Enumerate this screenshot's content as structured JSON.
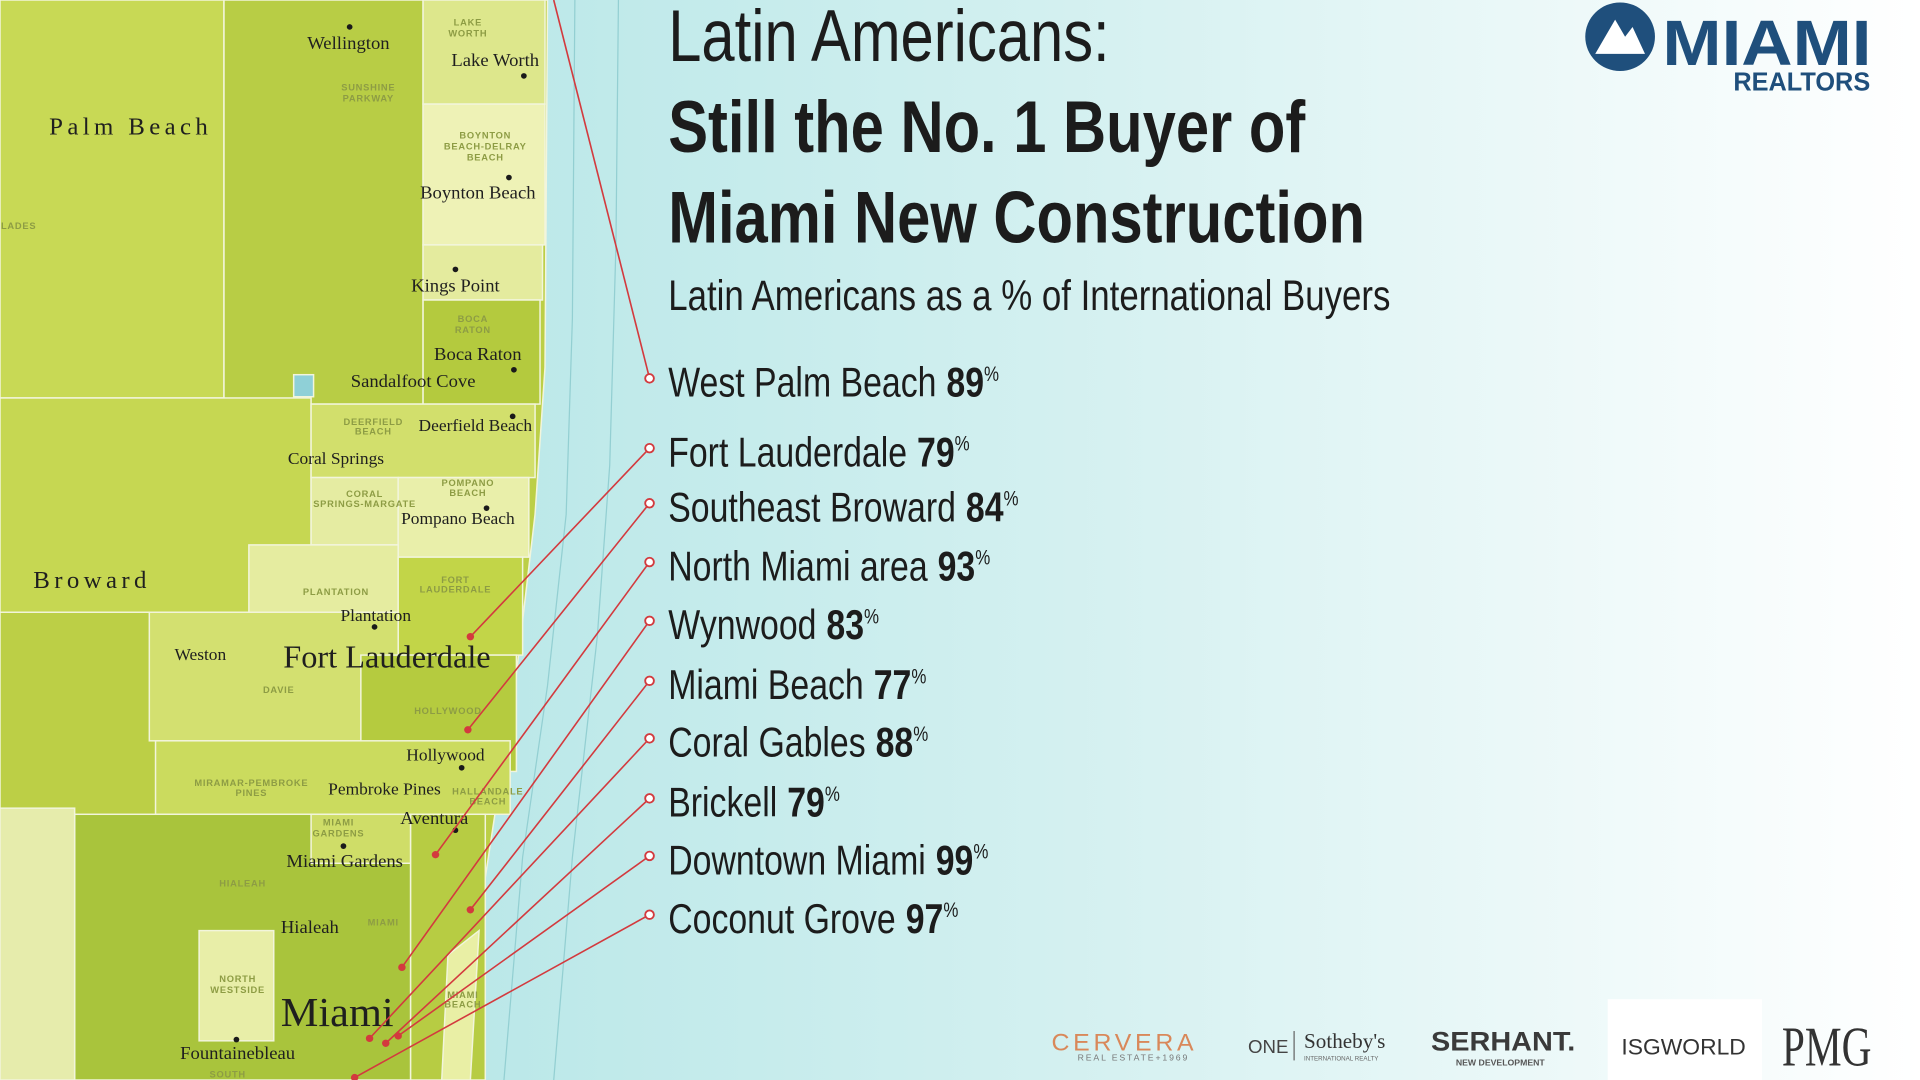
{
  "header": {
    "title_line1": "Latin Americans:",
    "title_line2": "Still the No. 1 Buyer of",
    "title_line3": "Miami New Construction",
    "subtitle": "Latin Americans as a % of International Buyers"
  },
  "unit": "%",
  "items": [
    {
      "name": "West Palm Beach",
      "value": 89
    },
    {
      "name": "Fort Lauderdale",
      "value": 79
    },
    {
      "name": "Southeast Broward",
      "value": 84
    },
    {
      "name": "North Miami area",
      "value": 93
    },
    {
      "name": "Wynwood",
      "value": 83
    },
    {
      "name": "Miami Beach",
      "value": 77
    },
    {
      "name": "Coral Gables",
      "value": 88
    },
    {
      "name": "Brickell",
      "value": 79
    },
    {
      "name": "Downtown Miami",
      "value": 99
    },
    {
      "name": "Coconut Grove",
      "value": 97
    }
  ],
  "map": {
    "labels": [
      "Wellington",
      "LAKE",
      "WORTH",
      "Lake Worth",
      "SUNSHINE",
      "PARKWAY",
      "Palm Beach",
      "BOYNTON",
      "BEACH-DELRAY",
      "BEACH",
      "Boynton Beach",
      "LADES",
      "Kings Point",
      "BOCA",
      "RATON",
      "Boca Raton",
      "Sandalfoot Cove",
      "DEERFIELD",
      "BEACH",
      "Deerfield Beach",
      "Coral Springs",
      "POMPANO",
      "BEACH",
      "CORAL",
      "SPRINGS-MARGATE",
      "Pompano Beach",
      "Broward",
      "FORT",
      "LAUDERDALE",
      "PLANTATION",
      "Plantation",
      "Weston",
      "Fort Lauderdale",
      "DAVIE",
      "HOLLYWOOD",
      "Hollywood",
      "MIRAMAR-PEMBROKE",
      "PINES",
      "Pembroke Pines",
      "HALLANDALE",
      "BEACH",
      "Aventura",
      "MIAMI",
      "GARDENS",
      "Miami Gardens",
      "HIALEAH",
      "Hialeah",
      "MIAMI",
      "NORTH",
      "WESTSIDE",
      "MIAMI",
      "BEACH",
      "Miami",
      "Fountainebleau",
      "SOUTH"
    ]
  },
  "logos": {
    "miami": "MIAMI",
    "realtors": "REALTORS",
    "cervera": "CERVERA",
    "cervera_sub": "REAL ESTATE+1969",
    "one": "ONE",
    "sothebys": "Sotheby's",
    "sothebys_sub": "INTERNATIONAL REALTY",
    "serhant": "SERHANT.",
    "serhant_sub": "NEW DEVELOPMENT",
    "isg": "ISGWORLD",
    "pmg": "PMG"
  }
}
